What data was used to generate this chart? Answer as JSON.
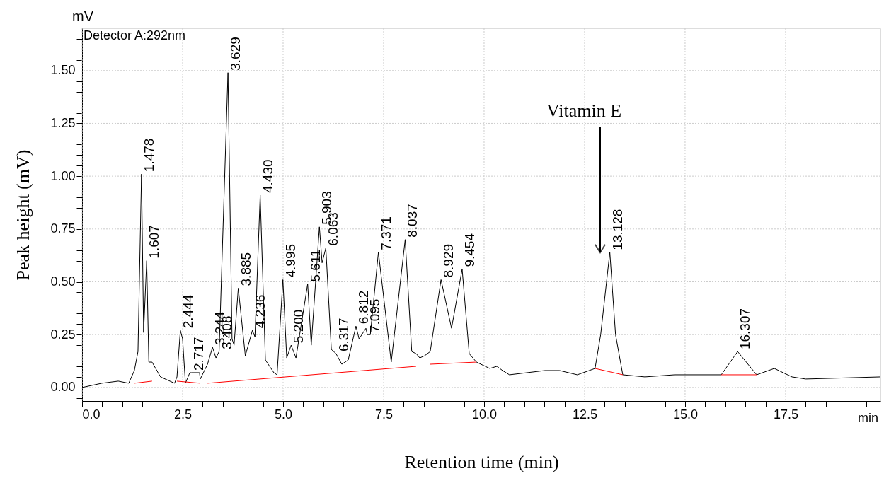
{
  "chart_data": {
    "type": "line",
    "xlabel": "Retention time (min)",
    "ylabel": "Peak height (mV)",
    "xlim": [
      0,
      19.86
    ],
    "ylim": [
      -0.064,
      1.7
    ],
    "xticks": [
      {
        "value": 0,
        "label": "0.0"
      },
      {
        "value": 0.5,
        "label": null
      },
      {
        "value": 1,
        "label": null
      },
      {
        "value": 1.5,
        "label": null
      },
      {
        "value": 2,
        "label": null
      },
      {
        "value": 2.5,
        "label": "2.5"
      },
      {
        "value": 3,
        "label": null
      },
      {
        "value": 3.5,
        "label": null
      },
      {
        "value": 4,
        "label": null
      },
      {
        "value": 4.5,
        "label": null
      },
      {
        "value": 5,
        "label": "5.0"
      },
      {
        "value": 5.5,
        "label": null
      },
      {
        "value": 6,
        "label": null
      },
      {
        "value": 6.5,
        "label": null
      },
      {
        "value": 7,
        "label": null
      },
      {
        "value": 7.5,
        "label": "7.5"
      },
      {
        "value": 8,
        "label": null
      },
      {
        "value": 8.5,
        "label": null
      },
      {
        "value": 9,
        "label": null
      },
      {
        "value": 9.5,
        "label": null
      },
      {
        "value": 10,
        "label": "10.0"
      },
      {
        "value": 10.5,
        "label": null
      },
      {
        "value": 11,
        "label": null
      },
      {
        "value": 11.5,
        "label": null
      },
      {
        "value": 12,
        "label": null
      },
      {
        "value": 12.5,
        "label": "12.5"
      },
      {
        "value": 13,
        "label": null
      },
      {
        "value": 13.5,
        "label": null
      },
      {
        "value": 14,
        "label": null
      },
      {
        "value": 14.5,
        "label": null
      },
      {
        "value": 15,
        "label": "15.0"
      },
      {
        "value": 15.5,
        "label": null
      },
      {
        "value": 16,
        "label": null
      },
      {
        "value": 16.5,
        "label": null
      },
      {
        "value": 17,
        "label": null
      },
      {
        "value": 17.5,
        "label": "17.5"
      },
      {
        "value": 18,
        "label": null
      },
      {
        "value": 18.5,
        "label": null
      },
      {
        "value": 19,
        "label": null
      },
      {
        "value": 19.5,
        "label": null
      }
    ],
    "yticks": [
      {
        "value": -0.05,
        "label": null
      },
      {
        "value": 0,
        "label": "0.00"
      },
      {
        "value": 0.05,
        "label": null
      },
      {
        "value": 0.1,
        "label": null
      },
      {
        "value": 0.15,
        "label": null
      },
      {
        "value": 0.2,
        "label": null
      },
      {
        "value": 0.25,
        "label": "0.25"
      },
      {
        "value": 0.3,
        "label": null
      },
      {
        "value": 0.35,
        "label": null
      },
      {
        "value": 0.4,
        "label": null
      },
      {
        "value": 0.45,
        "label": null
      },
      {
        "value": 0.5,
        "label": "0.50"
      },
      {
        "value": 0.55,
        "label": null
      },
      {
        "value": 0.6,
        "label": null
      },
      {
        "value": 0.65,
        "label": null
      },
      {
        "value": 0.7,
        "label": null
      },
      {
        "value": 0.75,
        "label": "0.75"
      },
      {
        "value": 0.8,
        "label": null
      },
      {
        "value": 0.85,
        "label": null
      },
      {
        "value": 0.9,
        "label": null
      },
      {
        "value": 0.95,
        "label": null
      },
      {
        "value": 1.0,
        "label": "1.00"
      },
      {
        "value": 1.05,
        "label": null
      },
      {
        "value": 1.1,
        "label": null
      },
      {
        "value": 1.15,
        "label": null
      },
      {
        "value": 1.2,
        "label": null
      },
      {
        "value": 1.25,
        "label": "1.25"
      },
      {
        "value": 1.3,
        "label": null
      },
      {
        "value": 1.35,
        "label": null
      },
      {
        "value": 1.4,
        "label": null
      },
      {
        "value": 1.45,
        "label": null
      },
      {
        "value": 1.5,
        "label": "1.50"
      },
      {
        "value": 1.55,
        "label": null
      },
      {
        "value": 1.6,
        "label": null
      },
      {
        "value": 1.65,
        "label": null
      }
    ],
    "grid": true,
    "series": [
      {
        "color": "#000000",
        "x": [
          0,
          0.49,
          0.9,
          1.16,
          1.3,
          1.39,
          1.478,
          1.53,
          1.607,
          1.66,
          1.74,
          1.95,
          2.3,
          2.36,
          2.444,
          2.5,
          2.57,
          2.68,
          2.717,
          2.92,
          2.94,
          3.12,
          3.244,
          3.33,
          3.408,
          3.629,
          3.73,
          3.78,
          3.885,
          4.06,
          4.236,
          4.3,
          4.43,
          4.56,
          4.77,
          4.85,
          4.995,
          5.09,
          5.2,
          5.32,
          5.611,
          5.7,
          5.903,
          5.97,
          6.063,
          6.2,
          6.317,
          6.46,
          6.62,
          6.812,
          6.89,
          7.06,
          7.095,
          7.17,
          7.371,
          7.69,
          8.037,
          8.2,
          8.31,
          8.4,
          8.52,
          8.66,
          8.929,
          9.19,
          9.454,
          9.63,
          9.81,
          10.14,
          10.32,
          10.46,
          10.63,
          11.51,
          11.88,
          12.32,
          12.76,
          12.9,
          13.128,
          13.27,
          13.45,
          14.0,
          14.74,
          15.9,
          16.307,
          16.78,
          17.22,
          17.66,
          18.0,
          19.86
        ],
        "values": [
          0.0,
          0.02,
          0.03,
          0.02,
          0.08,
          0.17,
          1.01,
          0.26,
          0.6,
          0.12,
          0.12,
          0.05,
          0.02,
          0.05,
          0.27,
          0.23,
          0.02,
          0.07,
          0.07,
          0.07,
          0.04,
          0.11,
          0.19,
          0.14,
          0.17,
          1.49,
          0.23,
          0.2,
          0.47,
          0.15,
          0.27,
          0.24,
          0.91,
          0.13,
          0.07,
          0.06,
          0.51,
          0.14,
          0.2,
          0.14,
          0.49,
          0.2,
          0.76,
          0.59,
          0.66,
          0.18,
          0.16,
          0.11,
          0.13,
          0.29,
          0.23,
          0.28,
          0.25,
          0.25,
          0.64,
          0.12,
          0.7,
          0.17,
          0.16,
          0.14,
          0.15,
          0.17,
          0.51,
          0.28,
          0.56,
          0.16,
          0.12,
          0.09,
          0.1,
          0.08,
          0.06,
          0.08,
          0.08,
          0.06,
          0.09,
          0.25,
          0.64,
          0.25,
          0.06,
          0.05,
          0.06,
          0.06,
          0.17,
          0.06,
          0.09,
          0.05,
          0.04,
          0.05
        ]
      },
      {
        "color": "#ff0000",
        "x": [
          1.3,
          1.74,
          2.0,
          2.36,
          2.94,
          3.0,
          3.12,
          8.31,
          8.5,
          8.66,
          9.81,
          11.0,
          12.76,
          13.45,
          14.5,
          15.9,
          16.78
        ],
        "values": [
          0.02,
          0.03,
          null,
          0.03,
          0.02,
          null,
          0.02,
          0.1,
          null,
          0.11,
          0.12,
          null,
          0.09,
          0.06,
          null,
          0.06,
          0.06
        ]
      }
    ],
    "annotations": [
      "mV",
      "Detector A:292nm",
      "min",
      "Vitamin E",
      {
        "text": "1.478",
        "x": 1.478,
        "y": 1.01
      },
      {
        "text": "1.607",
        "x": 1.607,
        "y": 0.6
      },
      {
        "text": "2.444",
        "x": 2.444,
        "y": 0.27
      },
      {
        "text": "2.717",
        "x": 2.717,
        "y": 0.07
      },
      {
        "text": "3.244",
        "x": 3.244,
        "y": 0.19
      },
      {
        "text": "3.408",
        "x": 3.408,
        "y": 0.17
      },
      {
        "text": "3.629",
        "x": 3.629,
        "y": 1.49
      },
      {
        "text": "3.885",
        "x": 3.885,
        "y": 0.47
      },
      {
        "text": "4.236",
        "x": 4.236,
        "y": 0.27
      },
      {
        "text": "4.430",
        "x": 4.43,
        "y": 0.91
      },
      {
        "text": "4.995",
        "x": 4.995,
        "y": 0.51
      },
      {
        "text": "5.200",
        "x": 5.2,
        "y": 0.2
      },
      {
        "text": "5.611",
        "x": 5.611,
        "y": 0.49
      },
      {
        "text": "5.903",
        "x": 5.903,
        "y": 0.76
      },
      {
        "text": "6.063",
        "x": 6.063,
        "y": 0.66
      },
      {
        "text": "6.317",
        "x": 6.317,
        "y": 0.16
      },
      {
        "text": "6.812",
        "x": 6.812,
        "y": 0.29
      },
      {
        "text": "7.095",
        "x": 7.095,
        "y": 0.25
      },
      {
        "text": "7.371",
        "x": 7.371,
        "y": 0.64
      },
      {
        "text": "8.037",
        "x": 8.037,
        "y": 0.7
      },
      {
        "text": "8.929",
        "x": 8.929,
        "y": 0.51
      },
      {
        "text": "9.454",
        "x": 9.454,
        "y": 0.56
      },
      {
        "text": "13.128",
        "x": 13.128,
        "y": 0.64
      },
      {
        "text": "16.307",
        "x": 16.307,
        "y": 0.17
      }
    ]
  }
}
